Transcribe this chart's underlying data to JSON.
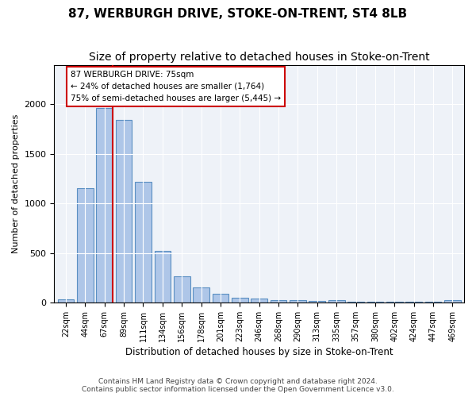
{
  "title": "87, WERBURGH DRIVE, STOKE-ON-TRENT, ST4 8LB",
  "subtitle": "Size of property relative to detached houses in Stoke-on-Trent",
  "xlabel": "Distribution of detached houses by size in Stoke-on-Trent",
  "ylabel": "Number of detached properties",
  "categories": [
    "22sqm",
    "44sqm",
    "67sqm",
    "89sqm",
    "111sqm",
    "134sqm",
    "156sqm",
    "178sqm",
    "201sqm",
    "223sqm",
    "246sqm",
    "268sqm",
    "290sqm",
    "313sqm",
    "335sqm",
    "357sqm",
    "380sqm",
    "402sqm",
    "424sqm",
    "447sqm",
    "469sqm"
  ],
  "values": [
    30,
    1150,
    1960,
    1840,
    1220,
    520,
    265,
    155,
    85,
    45,
    40,
    20,
    25,
    15,
    20,
    10,
    5,
    5,
    5,
    5,
    20
  ],
  "bar_color": "#aec6e8",
  "bar_edge_color": "#5a8fc2",
  "annotation_text": "87 WERBURGH DRIVE: 75sqm\n← 24% of detached houses are smaller (1,764)\n75% of semi-detached houses are larger (5,445) →",
  "annotation_box_color": "#ffffff",
  "annotation_box_edge": "#cc0000",
  "red_line_color": "#cc0000",
  "red_line_x": 2.425,
  "footer_line1": "Contains HM Land Registry data © Crown copyright and database right 2024.",
  "footer_line2": "Contains public sector information licensed under the Open Government Licence v3.0.",
  "bg_color": "#eef2f8",
  "ylim": [
    0,
    2400
  ],
  "title_fontsize": 11,
  "subtitle_fontsize": 10
}
